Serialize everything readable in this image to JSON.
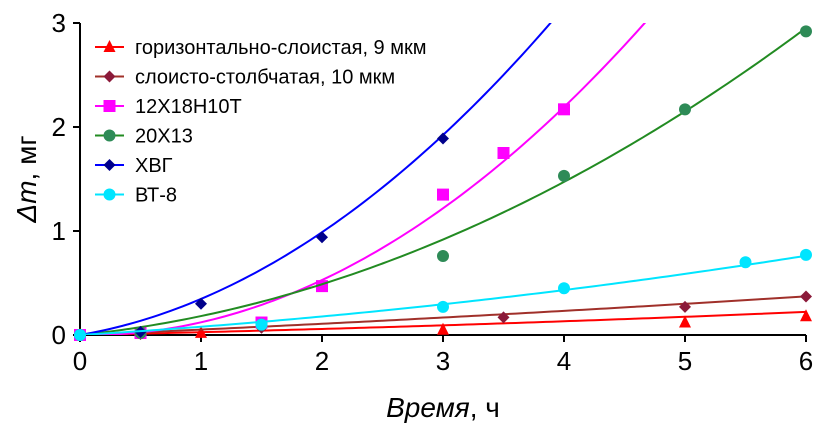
{
  "chart_data": {
    "type": "scatter",
    "xlabel": {
      "italic": "Время",
      "rest": ", ч"
    },
    "ylabel": {
      "italic": "Δm",
      "rest": ", мг"
    },
    "xlim": [
      0,
      6
    ],
    "ylim": [
      0,
      3
    ],
    "x_ticks": [
      "0",
      "1",
      "2",
      "3",
      "4",
      "5",
      "6"
    ],
    "y_ticks": [
      "0",
      "1",
      "2",
      "3"
    ],
    "grid": false,
    "legend_position": "top-left",
    "series": [
      {
        "name": "горизонтально-слоистая, 9 мкм",
        "color": "#ff0000",
        "line_color": "#ff0000",
        "marker": "triangle",
        "points": [
          [
            0,
            0
          ],
          [
            0.5,
            0.01
          ],
          [
            1,
            0.02
          ],
          [
            3,
            0.05
          ],
          [
            5,
            0.12
          ],
          [
            6,
            0.18
          ]
        ],
        "fit": [
          0.025,
          0.002
        ]
      },
      {
        "name": "слоисто-столбчатая, 10 мкм",
        "color": "#8b1a3a",
        "line_color": "#a0302a",
        "marker": "diamond",
        "points": [
          [
            0,
            0
          ],
          [
            0.5,
            0.01
          ],
          [
            1.5,
            0.07
          ],
          [
            3.5,
            0.17
          ],
          [
            5,
            0.27
          ],
          [
            6,
            0.37
          ]
        ],
        "fit": [
          0.05,
          0.002
        ]
      },
      {
        "name": "12Х18Н10Т",
        "color": "#ff00ff",
        "line_color": "#ff00ff",
        "marker": "square",
        "points": [
          [
            0,
            0
          ],
          [
            0.5,
            0.02
          ],
          [
            1.5,
            0.12
          ],
          [
            2,
            0.47
          ],
          [
            3,
            1.35
          ],
          [
            3.5,
            1.75
          ],
          [
            4,
            2.17
          ]
        ],
        "fit": [
          -0.02,
          0.142
        ]
      },
      {
        "name": "20Х13",
        "color": "#2e8b57",
        "line_color": "#228b22",
        "marker": "circle",
        "points": [
          [
            0,
            0
          ],
          [
            0.5,
            0.02
          ],
          [
            1.5,
            0.1
          ],
          [
            3,
            0.76
          ],
          [
            4,
            1.53
          ],
          [
            5,
            2.17
          ],
          [
            6,
            2.92
          ]
        ],
        "fit": [
          0.12,
          0.062
        ]
      },
      {
        "name": "ХВГ",
        "color": "#00008b",
        "line_color": "#0000ff",
        "marker": "diamond",
        "points": [
          [
            0,
            0
          ],
          [
            0.5,
            0.03
          ],
          [
            1,
            0.3
          ],
          [
            2,
            0.94
          ],
          [
            3,
            1.89
          ]
        ],
        "fit": [
          0.2,
          0.147
        ]
      },
      {
        "name": "ВТ-8",
        "color": "#00e5ff",
        "line_color": "#00e5ff",
        "marker": "circle",
        "points": [
          [
            0,
            0
          ],
          [
            1.5,
            0.1
          ],
          [
            3,
            0.27
          ],
          [
            4,
            0.45
          ],
          [
            5.5,
            0.7
          ],
          [
            6,
            0.77
          ]
        ],
        "fit": [
          0.07,
          0.0095
        ]
      }
    ]
  }
}
